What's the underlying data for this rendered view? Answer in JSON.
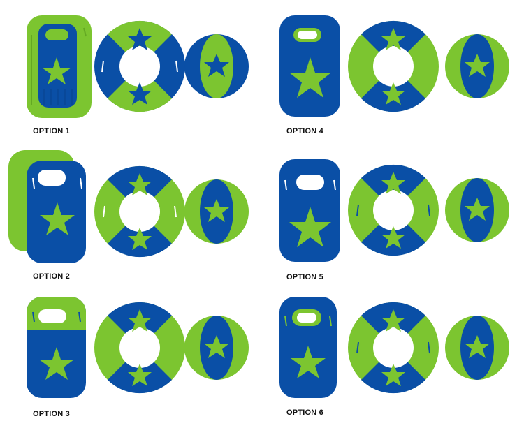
{
  "colors": {
    "blue": "#0a4fa6",
    "green": "#7cc530",
    "blue_dark": "#083f86",
    "green_dark": "#63a823"
  },
  "options": [
    {
      "label": "OPTION 1",
      "board": "green-outer-blue-inner",
      "ring_top": "blue",
      "ball_center": "green"
    },
    {
      "label": "OPTION 2",
      "board": "blue-with-green-back",
      "ring_top": "blue",
      "ball_center": "blue"
    },
    {
      "label": "OPTION 3",
      "board": "green-top-blue-bottom",
      "ring_top": "blue",
      "ball_center": "blue"
    },
    {
      "label": "OPTION 4",
      "board": "blue-full",
      "ring_top": "blue",
      "ball_center": "blue"
    },
    {
      "label": "OPTION 5",
      "board": "blue-full",
      "ring_top": "blue",
      "ball_center": "blue"
    },
    {
      "label": "OPTION 6",
      "board": "blue-full",
      "ring_top": "blue",
      "ball_center": "blue"
    }
  ]
}
